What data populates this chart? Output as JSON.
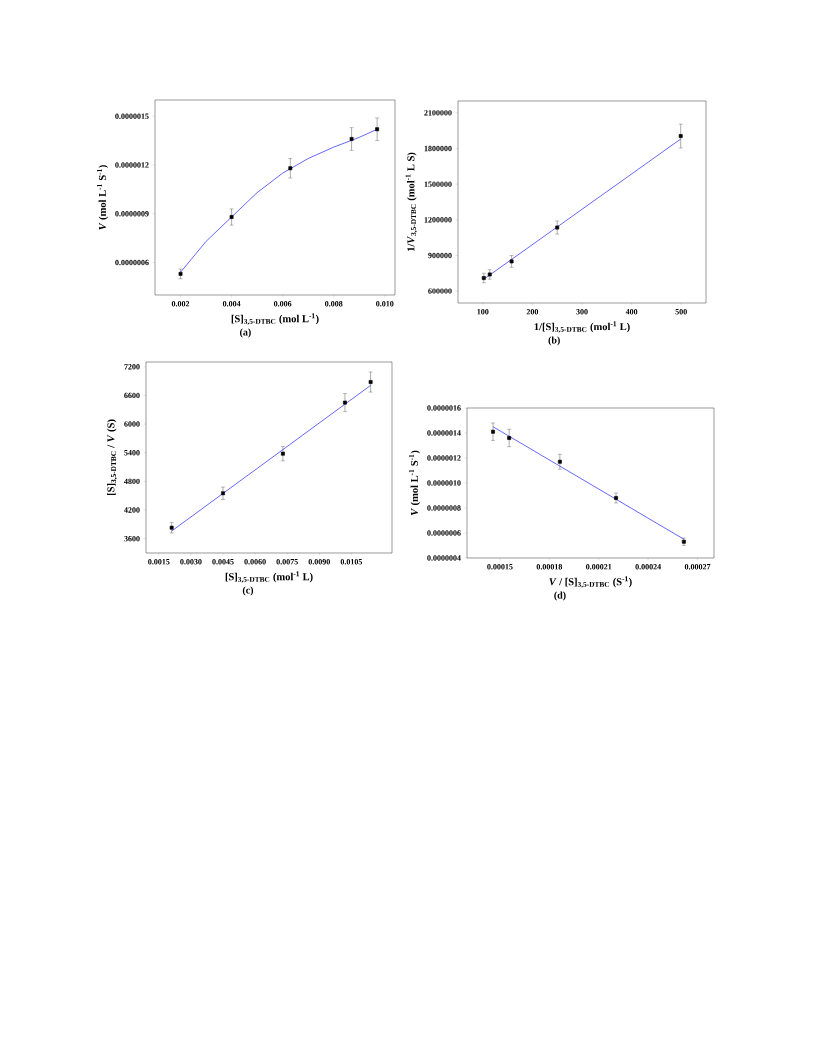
{
  "chart_data": [
    {
      "type": "scatter",
      "xlabel": "[S]$_{3,5-DTBC}$ (mol L$^{-1}$)",
      "ylabel": "*V* (mol L$^{-1}$ S$^{-1}$)",
      "annotations": [
        "(a)"
      ],
      "xlim": [
        0.001,
        0.0104
      ],
      "ylim": [
        4e-07,
        1.6e-06
      ],
      "xticks": [
        {
          "value": 0.002,
          "label": "0.002"
        },
        {
          "value": 0.004,
          "label": "0.004"
        },
        {
          "value": 0.006,
          "label": "0.006"
        },
        {
          "value": 0.008,
          "label": "0.008"
        },
        {
          "value": 0.01,
          "label": "0.010"
        }
      ],
      "yticks": [
        {
          "value": 6e-07,
          "label": "0.0000006"
        },
        {
          "value": 9e-07,
          "label": "0.0000009"
        },
        {
          "value": 1.2e-06,
          "label": "0.0000012"
        },
        {
          "value": 1.5e-06,
          "label": "0.0000015"
        }
      ],
      "series": [
        {
          "type": "scatter",
          "marker": "square",
          "color": "#000000",
          "x": [
            0.002,
            0.004,
            0.0063,
            0.0087,
            0.0097
          ],
          "values": [
            5.3e-07,
            8.8e-07,
            1.18e-06,
            1.36e-06,
            1.42e-06
          ],
          "errors": [
            3e-08,
            5e-08,
            6e-08,
            7e-08,
            7e-08
          ]
        },
        {
          "type": "line",
          "marker": "none",
          "color": "#0000ff",
          "x": [
            0.002,
            0.003,
            0.004,
            0.005,
            0.006,
            0.007,
            0.008,
            0.009,
            0.0097
          ],
          "values": [
            5.4e-07,
            7.3e-07,
            8.8e-07,
            1.03e-06,
            1.15e-06,
            1.24e-06,
            1.31e-06,
            1.37e-06,
            1.42e-06
          ]
        }
      ]
    },
    {
      "type": "scatter",
      "xlabel": "1/[S]$_{3,5-DTBC}$ (mol$^{-1}$ L)",
      "ylabel": "1/*V*$_{3,5-DTBC}$ (mol$^{-1}$ L S)",
      "annotations": [
        "(b)"
      ],
      "xlim": [
        50,
        550
      ],
      "ylim": [
        500000,
        2200000
      ],
      "xticks": [
        100,
        200,
        300,
        400,
        500
      ],
      "yticks": [
        600000,
        900000,
        1200000,
        1500000,
        1800000,
        2100000
      ],
      "series": [
        {
          "type": "scatter",
          "marker": "square",
          "color": "#000000",
          "x": [
            102,
            114,
            158,
            250,
            499
          ],
          "values": [
            710000,
            740000,
            850000,
            1135000,
            1905000
          ],
          "errors": [
            40000,
            40000,
            50000,
            55000,
            100000
          ]
        },
        {
          "type": "line",
          "marker": "none",
          "color": "#0000ff",
          "x": [
            102,
            499
          ],
          "values": [
            700000,
            1880000
          ]
        }
      ]
    },
    {
      "type": "scatter",
      "xlabel": "[S]$_{3,5-DTBC}$ (mol$^{-1}$ L)",
      "ylabel": "[S]$_{3,5-DTBC}$ / *V* (S)",
      "annotations": [
        "(c)"
      ],
      "xlim": [
        0.0009,
        0.0124
      ],
      "ylim": [
        3300,
        7300
      ],
      "xticks": [
        {
          "value": 0.0015,
          "label": "0.0015"
        },
        {
          "value": 0.003,
          "label": "0.0030"
        },
        {
          "value": 0.0045,
          "label": "0.0045"
        },
        {
          "value": 0.006,
          "label": "0.0060"
        },
        {
          "value": 0.0075,
          "label": "0.0075"
        },
        {
          "value": 0.009,
          "label": "0.0090"
        },
        {
          "value": 0.0105,
          "label": "0.0105"
        }
      ],
      "yticks": [
        3600,
        4200,
        4800,
        5400,
        6000,
        6600,
        7200
      ],
      "series": [
        {
          "type": "scatter",
          "marker": "square",
          "color": "#000000",
          "x": [
            0.0021,
            0.0045,
            0.0073,
            0.0102,
            0.0114
          ],
          "values": [
            3830,
            4550,
            5380,
            6450,
            6880
          ],
          "errors": [
            110,
            130,
            150,
            190,
            210
          ]
        },
        {
          "type": "line",
          "marker": "none",
          "color": "#0000ff",
          "x": [
            0.0021,
            0.0114
          ],
          "values": [
            3760,
            6810
          ]
        }
      ]
    },
    {
      "type": "scatter",
      "xlabel": "*V* / [S]$_{3,5-DTBC}$ (S$^{-1}$)",
      "ylabel": "*V* (mol L$^{-1}$ S$^{-1}$)",
      "annotations": [
        "(d)"
      ],
      "xlim": [
        0.00013,
        0.00028
      ],
      "ylim": [
        4e-07,
        1.6e-06
      ],
      "xticks": [
        {
          "value": 0.00015,
          "label": "0.00015"
        },
        {
          "value": 0.00018,
          "label": "0.00018"
        },
        {
          "value": 0.00021,
          "label": "0.00021"
        },
        {
          "value": 0.00024,
          "label": "0.00024"
        },
        {
          "value": 0.00027,
          "label": "0.00027"
        }
      ],
      "yticks": [
        {
          "value": 4e-07,
          "label": "0.0000004"
        },
        {
          "value": 6e-07,
          "label": "0.0000006"
        },
        {
          "value": 8e-07,
          "label": "0.0000008"
        },
        {
          "value": 1e-06,
          "label": "0.0000010"
        },
        {
          "value": 1.2e-06,
          "label": "0.0000012"
        },
        {
          "value": 1.4e-06,
          "label": "0.0000014"
        },
        {
          "value": 1.6e-06,
          "label": "0.0000016"
        }
      ],
      "series": [
        {
          "type": "scatter",
          "marker": "square",
          "color": "#000000",
          "x": [
            0.0001458,
            0.0001556,
            0.0001864,
            0.0002205,
            0.0002617
          ],
          "values": [
            1.41e-06,
            1.36e-06,
            1.17e-06,
            8.8e-07,
            5.3e-07
          ],
          "errors": [
            7e-08,
            7e-08,
            6e-08,
            4e-08,
            3e-08
          ]
        },
        {
          "type": "line",
          "marker": "none",
          "color": "#0000ff",
          "x": [
            0.0001458,
            0.0002617
          ],
          "values": [
            1.45e-06,
            5.5e-07
          ]
        }
      ]
    }
  ]
}
